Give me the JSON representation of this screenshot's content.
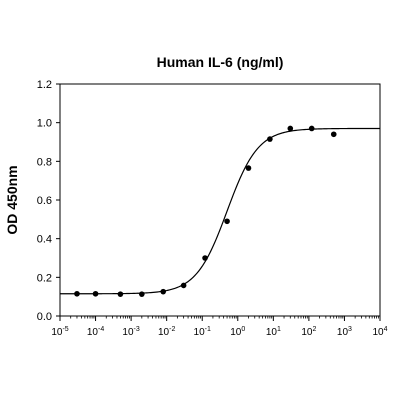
{
  "chart_data": {
    "type": "scatter",
    "title": "Human IL-6 (ng/ml)",
    "xlabel": "",
    "ylabel": "OD 450nm",
    "x_scale": "log",
    "xlim": [
      1e-05,
      10000
    ],
    "ylim": [
      0,
      1.2
    ],
    "grid": false,
    "legend": "none",
    "y_ticks": [
      "0.0",
      "0.2",
      "0.4",
      "0.6",
      "0.8",
      "1.0",
      "1.2"
    ],
    "x_ticks": [
      {
        "base": "10",
        "exp": "-5"
      },
      {
        "base": "10",
        "exp": "-4"
      },
      {
        "base": "10",
        "exp": "-3"
      },
      {
        "base": "10",
        "exp": "-2"
      },
      {
        "base": "10",
        "exp": "-1"
      },
      {
        "base": "10",
        "exp": "0"
      },
      {
        "base": "10",
        "exp": "1"
      },
      {
        "base": "10",
        "exp": "2"
      },
      {
        "base": "10",
        "exp": "3"
      },
      {
        "base": "10",
        "exp": "4"
      }
    ],
    "points": [
      {
        "x": 3e-05,
        "y": 0.115
      },
      {
        "x": 0.0001,
        "y": 0.115
      },
      {
        "x": 0.0005,
        "y": 0.113
      },
      {
        "x": 0.002,
        "y": 0.113
      },
      {
        "x": 0.008,
        "y": 0.126
      },
      {
        "x": 0.03,
        "y": 0.158
      },
      {
        "x": 0.12,
        "y": 0.3
      },
      {
        "x": 0.5,
        "y": 0.49
      },
      {
        "x": 2,
        "y": 0.765
      },
      {
        "x": 8,
        "y": 0.915
      },
      {
        "x": 30,
        "y": 0.97
      },
      {
        "x": 120,
        "y": 0.97
      },
      {
        "x": 500,
        "y": 0.94
      }
    ],
    "fit": {
      "model": "4PL",
      "bottom": 0.115,
      "top": 0.97,
      "ec50": 0.5,
      "hill": 1.0
    },
    "colors": {
      "points": "#000000",
      "line": "#000000",
      "axis": "#000000"
    }
  }
}
